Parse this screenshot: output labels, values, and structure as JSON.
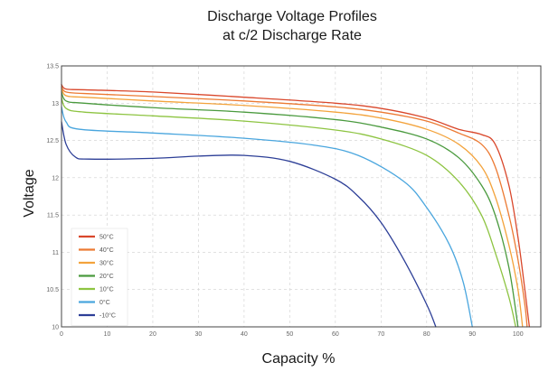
{
  "chart_data": {
    "type": "line",
    "title_lines": [
      "Discharge Voltage Profiles",
      "at c/2 Discharge Rate"
    ],
    "xlabel": "Capacity %",
    "ylabel": "Voltage",
    "xlim": [
      0,
      105
    ],
    "ylim": [
      10,
      13.5
    ],
    "x_ticks": [
      0,
      10,
      20,
      30,
      40,
      50,
      60,
      70,
      80,
      90,
      100
    ],
    "y_ticks": [
      {
        "value": 10,
        "label": "10"
      },
      {
        "value": 10.5,
        "label": "10.5"
      },
      {
        "value": 11,
        "label": "11"
      },
      {
        "value": 11.5,
        "label": "11.5"
      },
      {
        "value": 12,
        "label": "12"
      },
      {
        "value": 12.5,
        "label": "12.5"
      },
      {
        "value": 13,
        "label": "13"
      },
      {
        "value": 13.5,
        "label": "13.5"
      }
    ],
    "grid": true,
    "legend_position": "bottom-left",
    "series": [
      {
        "name": "50°C",
        "color": "#d9472b",
        "points": [
          [
            0,
            13.25
          ],
          [
            1,
            13.19
          ],
          [
            5,
            13.18
          ],
          [
            20,
            13.15
          ],
          [
            40,
            13.08
          ],
          [
            60,
            13.0
          ],
          [
            70,
            12.93
          ],
          [
            80,
            12.8
          ],
          [
            87,
            12.65
          ],
          [
            92,
            12.58
          ],
          [
            95,
            12.45
          ],
          [
            98,
            11.9
          ],
          [
            100,
            11.2
          ],
          [
            101.5,
            10.5
          ],
          [
            102.5,
            10.0
          ]
        ]
      },
      {
        "name": "40°C",
        "color": "#ec7a33",
        "points": [
          [
            0,
            13.22
          ],
          [
            1,
            13.15
          ],
          [
            5,
            13.13
          ],
          [
            20,
            13.09
          ],
          [
            40,
            13.03
          ],
          [
            60,
            12.95
          ],
          [
            70,
            12.88
          ],
          [
            80,
            12.76
          ],
          [
            87,
            12.6
          ],
          [
            92,
            12.45
          ],
          [
            95,
            12.15
          ],
          [
            98,
            11.5
          ],
          [
            100,
            10.9
          ],
          [
            101.5,
            10.3
          ],
          [
            102,
            10.0
          ]
        ]
      },
      {
        "name": "30°C",
        "color": "#f3a33c",
        "points": [
          [
            0,
            13.2
          ],
          [
            1,
            13.1
          ],
          [
            5,
            13.08
          ],
          [
            20,
            13.03
          ],
          [
            40,
            12.97
          ],
          [
            60,
            12.88
          ],
          [
            70,
            12.8
          ],
          [
            80,
            12.65
          ],
          [
            87,
            12.45
          ],
          [
            92,
            12.15
          ],
          [
            95,
            11.75
          ],
          [
            98,
            11.1
          ],
          [
            100,
            10.5
          ],
          [
            101,
            10.0
          ]
        ]
      },
      {
        "name": "20°C",
        "color": "#4a9a3e",
        "points": [
          [
            0,
            13.15
          ],
          [
            1,
            13.03
          ],
          [
            5,
            13.0
          ],
          [
            20,
            12.94
          ],
          [
            40,
            12.88
          ],
          [
            60,
            12.78
          ],
          [
            70,
            12.68
          ],
          [
            80,
            12.52
          ],
          [
            87,
            12.27
          ],
          [
            92,
            11.9
          ],
          [
            95,
            11.5
          ],
          [
            98,
            10.8
          ],
          [
            100,
            10.0
          ]
        ]
      },
      {
        "name": "10°C",
        "color": "#8dc441",
        "points": [
          [
            0,
            13.08
          ],
          [
            1,
            12.93
          ],
          [
            5,
            12.88
          ],
          [
            20,
            12.83
          ],
          [
            40,
            12.76
          ],
          [
            60,
            12.64
          ],
          [
            70,
            12.52
          ],
          [
            80,
            12.3
          ],
          [
            87,
            11.95
          ],
          [
            92,
            11.5
          ],
          [
            95,
            11.0
          ],
          [
            98,
            10.4
          ],
          [
            99.5,
            10.0
          ]
        ]
      },
      {
        "name": "0°C",
        "color": "#4aa6de",
        "points": [
          [
            0,
            12.95
          ],
          [
            1,
            12.75
          ],
          [
            4,
            12.65
          ],
          [
            20,
            12.6
          ],
          [
            40,
            12.53
          ],
          [
            55,
            12.44
          ],
          [
            65,
            12.3
          ],
          [
            75,
            11.95
          ],
          [
            80,
            11.6
          ],
          [
            85,
            11.1
          ],
          [
            88,
            10.6
          ],
          [
            90,
            10.0
          ]
        ]
      },
      {
        "name": "-10°C",
        "color": "#2d3f97",
        "points": [
          [
            0,
            12.75
          ],
          [
            1,
            12.45
          ],
          [
            3,
            12.28
          ],
          [
            6,
            12.25
          ],
          [
            20,
            12.26
          ],
          [
            30,
            12.29
          ],
          [
            40,
            12.3
          ],
          [
            50,
            12.22
          ],
          [
            60,
            11.98
          ],
          [
            65,
            11.75
          ],
          [
            70,
            11.4
          ],
          [
            75,
            10.9
          ],
          [
            80,
            10.3
          ],
          [
            82,
            10.0
          ]
        ]
      }
    ]
  }
}
